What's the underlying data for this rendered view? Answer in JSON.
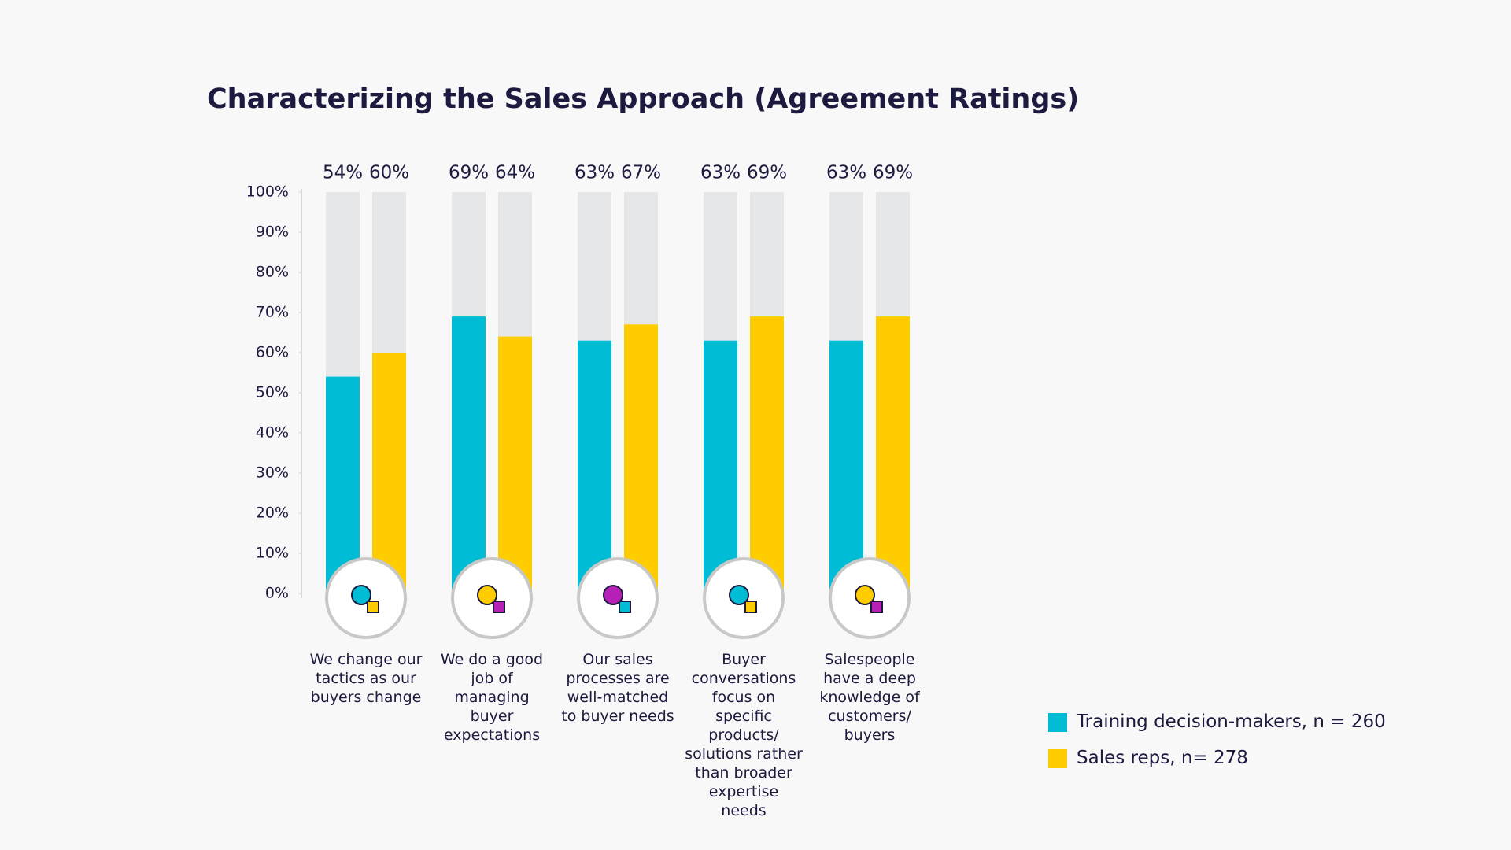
{
  "chart_data": {
    "type": "bar",
    "title": "Characterizing the Sales Approach (Agreement Ratings)",
    "categories": [
      "We change our tactics as our buyers change",
      "We do a good job of managing buyer expectations",
      "Our sales processes are well-matched to buyer needs",
      "Buyer conversations focus on specific products/ solutions rather than broader expertise needs",
      "Salespeople have a deep knowledge of customers/ buyers"
    ],
    "series": [
      {
        "name": "Training decision-makers, n = 260",
        "color": "#00bcd4",
        "values": [
          54,
          69,
          63,
          63,
          63
        ],
        "value_labels": [
          "54%",
          "69%",
          "63%",
          "63%",
          "63%"
        ]
      },
      {
        "name": "Sales reps, n= 278",
        "color": "#ffcc00",
        "values": [
          60,
          64,
          67,
          69,
          69
        ],
        "value_labels": [
          "60%",
          "64%",
          "67%",
          "69%",
          "69%"
        ]
      }
    ],
    "ylim": [
      0,
      100
    ],
    "yticks": [
      {
        "value": 0,
        "label": "0%"
      },
      {
        "value": 10,
        "label": "10%"
      },
      {
        "value": 20,
        "label": "20%"
      },
      {
        "value": 30,
        "label": "30%"
      },
      {
        "value": 40,
        "label": "40%"
      },
      {
        "value": 50,
        "label": "50%"
      },
      {
        "value": 60,
        "label": "60%"
      },
      {
        "value": 70,
        "label": "70%"
      },
      {
        "value": 80,
        "label": "80%"
      },
      {
        "value": 90,
        "label": "90%"
      },
      {
        "value": 100,
        "label": "100%"
      }
    ],
    "legend": "bottom-right"
  }
}
